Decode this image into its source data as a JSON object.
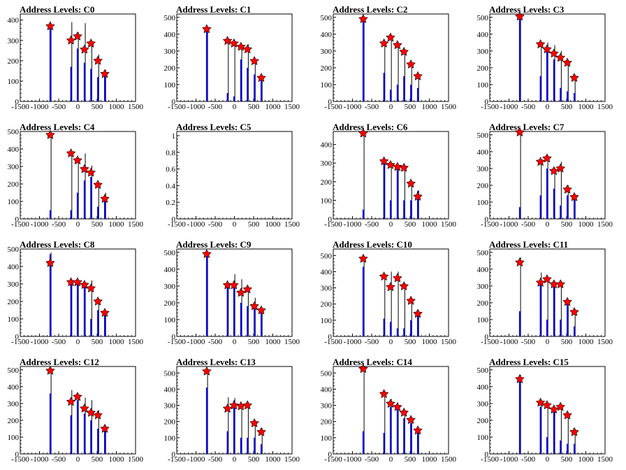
{
  "chart_data": [
    {
      "type": "bar",
      "title": "Address Levels: C0",
      "xlim": [
        -1500,
        1500
      ],
      "ylim": [
        0,
        430
      ],
      "yticks": [
        0,
        100,
        200,
        300,
        400
      ],
      "xticks": [
        -1500,
        -1000,
        -500,
        0,
        500,
        1000,
        1500
      ],
      "levels": [
        {
          "x": -720,
          "blue": 370,
          "black": 380,
          "marker": 370
        },
        {
          "x": -180,
          "blue": 170,
          "black": 390,
          "marker": 300
        },
        {
          "x": -10,
          "blue": 260,
          "black": 340,
          "marker": 320
        },
        {
          "x": 170,
          "blue": 190,
          "black": 385,
          "marker": 255
        },
        {
          "x": 340,
          "blue": 160,
          "black": 300,
          "marker": 285
        },
        {
          "x": 520,
          "blue": 120,
          "black": 230,
          "marker": 200
        },
        {
          "x": 700,
          "blue": 140,
          "black": 155,
          "marker": 135
        }
      ]
    },
    {
      "type": "bar",
      "title": "Address Levels: C1",
      "xlim": [
        -1500,
        1500
      ],
      "ylim": [
        0,
        520
      ],
      "yticks": [
        0,
        100,
        200,
        300,
        400,
        500
      ],
      "xticks": [
        -1500,
        -1000,
        -500,
        0,
        500,
        1000,
        1500
      ],
      "levels": [
        {
          "x": -720,
          "blue": 440,
          "black": 445,
          "marker": 430
        },
        {
          "x": -180,
          "blue": 50,
          "black": 370,
          "marker": 360
        },
        {
          "x": -10,
          "blue": 30,
          "black": 360,
          "marker": 345
        },
        {
          "x": 170,
          "blue": 250,
          "black": 340,
          "marker": 325
        },
        {
          "x": 340,
          "blue": 200,
          "black": 340,
          "marker": 310
        },
        {
          "x": 520,
          "blue": 160,
          "black": 255,
          "marker": 240
        },
        {
          "x": 700,
          "blue": 130,
          "black": 150,
          "marker": 140
        }
      ]
    },
    {
      "type": "bar",
      "title": "Address Levels: C2",
      "xlim": [
        -1500,
        1500
      ],
      "ylim": [
        0,
        520
      ],
      "yticks": [
        0,
        100,
        200,
        300,
        400,
        500
      ],
      "xticks": [
        -1500,
        -1000,
        -500,
        0,
        500,
        1000,
        1500
      ],
      "levels": [
        {
          "x": -720,
          "blue": 500,
          "black": 505,
          "marker": 490
        },
        {
          "x": -180,
          "blue": 170,
          "black": 355,
          "marker": 345
        },
        {
          "x": -10,
          "blue": 70,
          "black": 390,
          "marker": 380
        },
        {
          "x": 170,
          "blue": 100,
          "black": 350,
          "marker": 335
        },
        {
          "x": 340,
          "blue": 150,
          "black": 310,
          "marker": 295
        },
        {
          "x": 520,
          "blue": 100,
          "black": 235,
          "marker": 220
        },
        {
          "x": 700,
          "blue": 80,
          "black": 165,
          "marker": 150
        }
      ]
    },
    {
      "type": "bar",
      "title": "Address Levels: C3",
      "xlim": [
        -1500,
        1500
      ],
      "ylim": [
        0,
        520
      ],
      "yticks": [
        0,
        100,
        200,
        300,
        400,
        500
      ],
      "xticks": [
        -1500,
        -1000,
        -500,
        0,
        500,
        1000,
        1500
      ],
      "levels": [
        {
          "x": -720,
          "blue": 505,
          "black": 510,
          "marker": 505
        },
        {
          "x": -180,
          "blue": 150,
          "black": 350,
          "marker": 340
        },
        {
          "x": -10,
          "blue": 300,
          "black": 350,
          "marker": 310
        },
        {
          "x": 170,
          "blue": 250,
          "black": 335,
          "marker": 285
        },
        {
          "x": 340,
          "blue": 80,
          "black": 300,
          "marker": 260
        },
        {
          "x": 520,
          "blue": 60,
          "black": 240,
          "marker": 230
        },
        {
          "x": 700,
          "blue": 50,
          "black": 155,
          "marker": 140
        }
      ]
    },
    {
      "type": "bar",
      "title": "Address Levels: C4",
      "xlim": [
        -1500,
        1500
      ],
      "ylim": [
        0,
        500
      ],
      "yticks": [
        0,
        100,
        200,
        300,
        400,
        500
      ],
      "xticks": [
        -1500,
        -1000,
        -500,
        0,
        500,
        1000,
        1500
      ],
      "levels": [
        {
          "x": -720,
          "blue": 50,
          "black": 485,
          "marker": 480
        },
        {
          "x": -180,
          "blue": 50,
          "black": 385,
          "marker": 375
        },
        {
          "x": -10,
          "blue": 150,
          "black": 340,
          "marker": 335
        },
        {
          "x": 170,
          "blue": 220,
          "black": 375,
          "marker": 285
        },
        {
          "x": 340,
          "blue": 240,
          "black": 305,
          "marker": 265
        },
        {
          "x": 520,
          "blue": 70,
          "black": 210,
          "marker": 195
        },
        {
          "x": 700,
          "blue": 100,
          "black": 150,
          "marker": 115
        }
      ]
    },
    {
      "type": "bar",
      "title": "Address Levels: C5",
      "xlim": [
        -1500,
        1500
      ],
      "ylim": [
        0,
        1.05
      ],
      "yticks": [
        0,
        0.2,
        0.4,
        0.6,
        0.8,
        1
      ],
      "xticks": [
        -1500,
        -1000,
        -500,
        0,
        500,
        1000,
        1500
      ],
      "levels": []
    },
    {
      "type": "bar",
      "title": "Address Levels: C6",
      "xlim": [
        -1500,
        1500
      ],
      "ylim": [
        0,
        470
      ],
      "yticks": [
        0,
        100,
        200,
        300,
        400
      ],
      "xticks": [
        -1500,
        -1000,
        -500,
        0,
        500,
        1000,
        1500
      ],
      "levels": [
        {
          "x": -720,
          "blue": 50,
          "black": 470,
          "marker": 460
        },
        {
          "x": -180,
          "blue": 310,
          "black": 320,
          "marker": 310
        },
        {
          "x": -10,
          "blue": 100,
          "black": 300,
          "marker": 290
        },
        {
          "x": 170,
          "blue": 270,
          "black": 290,
          "marker": 280
        },
        {
          "x": 340,
          "blue": 100,
          "black": 280,
          "marker": 275
        },
        {
          "x": 520,
          "blue": 100,
          "black": 200,
          "marker": 190
        },
        {
          "x": 700,
          "blue": 150,
          "black": 155,
          "marker": 120
        }
      ]
    },
    {
      "type": "bar",
      "title": "Address Levels: C7",
      "xlim": [
        -1500,
        1500
      ],
      "ylim": [
        0,
        520
      ],
      "yticks": [
        0,
        100,
        200,
        300,
        400,
        500
      ],
      "xticks": [
        -1500,
        -1000,
        -500,
        0,
        500,
        1000,
        1500
      ],
      "levels": [
        {
          "x": -720,
          "blue": 70,
          "black": 520,
          "marker": 515
        },
        {
          "x": -180,
          "blue": 140,
          "black": 350,
          "marker": 340
        },
        {
          "x": -10,
          "blue": 300,
          "black": 360,
          "marker": 360
        },
        {
          "x": 170,
          "blue": 180,
          "black": 300,
          "marker": 285
        },
        {
          "x": 340,
          "blue": 80,
          "black": 340,
          "marker": 300
        },
        {
          "x": 520,
          "blue": 140,
          "black": 200,
          "marker": 175
        },
        {
          "x": 700,
          "blue": 120,
          "black": 145,
          "marker": 130
        }
      ]
    },
    {
      "type": "bar",
      "title": "Address Levels: C8",
      "xlim": [
        -1500,
        1500
      ],
      "ylim": [
        0,
        500
      ],
      "yticks": [
        0,
        100,
        200,
        300,
        400,
        500
      ],
      "xticks": [
        -1500,
        -1000,
        -500,
        0,
        500,
        1000,
        1500
      ],
      "levels": [
        {
          "x": -720,
          "blue": 470,
          "black": 480,
          "marker": 420
        },
        {
          "x": -180,
          "blue": 300,
          "black": 320,
          "marker": 310
        },
        {
          "x": -10,
          "blue": 300,
          "black": 320,
          "marker": 310
        },
        {
          "x": 170,
          "blue": 290,
          "black": 310,
          "marker": 295
        },
        {
          "x": 340,
          "blue": 100,
          "black": 320,
          "marker": 275
        },
        {
          "x": 520,
          "blue": 150,
          "black": 215,
          "marker": 200
        },
        {
          "x": 700,
          "blue": 130,
          "black": 140,
          "marker": 135
        }
      ]
    },
    {
      "type": "bar",
      "title": "Address Levels: C9",
      "xlim": [
        -1500,
        1500
      ],
      "ylim": [
        0,
        520
      ],
      "yticks": [
        0,
        100,
        200,
        300,
        400,
        500
      ],
      "xticks": [
        -1500,
        -1000,
        -500,
        0,
        500,
        1000,
        1500
      ],
      "levels": [
        {
          "x": -720,
          "blue": 500,
          "black": 505,
          "marker": 490
        },
        {
          "x": -180,
          "blue": 310,
          "black": 320,
          "marker": 305
        },
        {
          "x": -10,
          "blue": 320,
          "black": 370,
          "marker": 305
        },
        {
          "x": 170,
          "blue": 200,
          "black": 340,
          "marker": 260
        },
        {
          "x": 340,
          "blue": 180,
          "black": 300,
          "marker": 280
        },
        {
          "x": 520,
          "blue": 170,
          "black": 230,
          "marker": 180
        },
        {
          "x": 700,
          "blue": 150,
          "black": 170,
          "marker": 155
        }
      ]
    },
    {
      "type": "bar",
      "title": "Address Levels: C10",
      "xlim": [
        -1500,
        1500
      ],
      "ylim": [
        0,
        540
      ],
      "yticks": [
        0,
        100,
        200,
        300,
        400,
        500
      ],
      "xticks": [
        -1500,
        -1000,
        -500,
        0,
        500,
        1000,
        1500
      ],
      "levels": [
        {
          "x": -720,
          "blue": 430,
          "black": 500,
          "marker": 480
        },
        {
          "x": -180,
          "blue": 110,
          "black": 380,
          "marker": 370
        },
        {
          "x": -10,
          "blue": 90,
          "black": 400,
          "marker": 305
        },
        {
          "x": 170,
          "blue": 50,
          "black": 400,
          "marker": 360
        },
        {
          "x": 340,
          "blue": 50,
          "black": 330,
          "marker": 310
        },
        {
          "x": 520,
          "blue": 100,
          "black": 240,
          "marker": 220
        },
        {
          "x": 700,
          "blue": 150,
          "black": 160,
          "marker": 140
        }
      ]
    },
    {
      "type": "bar",
      "title": "Address Levels: C11",
      "xlim": [
        -1500,
        1500
      ],
      "ylim": [
        0,
        520
      ],
      "yticks": [
        0,
        100,
        200,
        300,
        400,
        500
      ],
      "xticks": [
        -1500,
        -1000,
        -500,
        0,
        500,
        1000,
        1500
      ],
      "levels": [
        {
          "x": -720,
          "blue": 150,
          "black": 470,
          "marker": 440
        },
        {
          "x": -180,
          "blue": 320,
          "black": 380,
          "marker": 320
        },
        {
          "x": -10,
          "blue": 100,
          "black": 350,
          "marker": 340
        },
        {
          "x": 170,
          "blue": 300,
          "black": 330,
          "marker": 310
        },
        {
          "x": 340,
          "blue": 100,
          "black": 330,
          "marker": 310
        },
        {
          "x": 520,
          "blue": 200,
          "black": 220,
          "marker": 205
        },
        {
          "x": 700,
          "blue": 60,
          "black": 155,
          "marker": 145
        }
      ]
    },
    {
      "type": "bar",
      "title": "Address Levels: C12",
      "xlim": [
        -1500,
        1500
      ],
      "ylim": [
        0,
        520
      ],
      "yticks": [
        0,
        100,
        200,
        300,
        400,
        500
      ],
      "xticks": [
        -1500,
        -1000,
        -500,
        0,
        500,
        1000,
        1500
      ],
      "levels": [
        {
          "x": -720,
          "blue": 360,
          "black": 510,
          "marker": 495
        },
        {
          "x": -180,
          "blue": 230,
          "black": 380,
          "marker": 310
        },
        {
          "x": -10,
          "blue": 320,
          "black": 350,
          "marker": 340
        },
        {
          "x": 170,
          "blue": 240,
          "black": 335,
          "marker": 270
        },
        {
          "x": 340,
          "blue": 200,
          "black": 320,
          "marker": 245
        },
        {
          "x": 520,
          "blue": 150,
          "black": 260,
          "marker": 230
        },
        {
          "x": 700,
          "blue": 150,
          "black": 170,
          "marker": 150
        }
      ]
    },
    {
      "type": "bar",
      "title": "Address Levels: C13",
      "xlim": [
        -1500,
        1500
      ],
      "ylim": [
        0,
        540
      ],
      "yticks": [
        0,
        100,
        200,
        300,
        400,
        500
      ],
      "xticks": [
        -1500,
        -1000,
        -500,
        0,
        500,
        1000,
        1500
      ],
      "levels": [
        {
          "x": -720,
          "blue": 410,
          "black": 510,
          "marker": 510
        },
        {
          "x": -180,
          "blue": 140,
          "black": 350,
          "marker": 280
        },
        {
          "x": -10,
          "blue": 330,
          "black": 345,
          "marker": 300
        },
        {
          "x": 170,
          "blue": 100,
          "black": 310,
          "marker": 295
        },
        {
          "x": 340,
          "blue": 100,
          "black": 320,
          "marker": 300
        },
        {
          "x": 520,
          "blue": 100,
          "black": 200,
          "marker": 190
        },
        {
          "x": 700,
          "blue": 60,
          "black": 160,
          "marker": 135
        }
      ]
    },
    {
      "type": "bar",
      "title": "Address Levels: C14",
      "xlim": [
        -1500,
        1500
      ],
      "ylim": [
        0,
        540
      ],
      "yticks": [
        0,
        100,
        200,
        300,
        400,
        500
      ],
      "xticks": [
        -1500,
        -1000,
        -500,
        0,
        500,
        1000,
        1500
      ],
      "levels": [
        {
          "x": -720,
          "blue": 140,
          "black": 540,
          "marker": 525
        },
        {
          "x": -180,
          "blue": 130,
          "black": 385,
          "marker": 370
        },
        {
          "x": -10,
          "blue": 290,
          "black": 340,
          "marker": 310
        },
        {
          "x": 170,
          "blue": 280,
          "black": 300,
          "marker": 290
        },
        {
          "x": 340,
          "blue": 220,
          "black": 270,
          "marker": 255
        },
        {
          "x": 520,
          "blue": 190,
          "black": 220,
          "marker": 210
        },
        {
          "x": 700,
          "blue": 130,
          "black": 150,
          "marker": 145
        }
      ]
    },
    {
      "type": "bar",
      "title": "Address Levels: C15",
      "xlim": [
        -1500,
        1500
      ],
      "ylim": [
        0,
        520
      ],
      "yticks": [
        0,
        100,
        200,
        300,
        400,
        500
      ],
      "xticks": [
        -1500,
        -1000,
        -500,
        0,
        500,
        1000,
        1500
      ],
      "levels": [
        {
          "x": -720,
          "blue": 460,
          "black": 470,
          "marker": 445
        },
        {
          "x": -180,
          "blue": 280,
          "black": 320,
          "marker": 305
        },
        {
          "x": -10,
          "blue": 100,
          "black": 310,
          "marker": 290
        },
        {
          "x": 170,
          "blue": 260,
          "black": 285,
          "marker": 265
        },
        {
          "x": 340,
          "blue": 80,
          "black": 300,
          "marker": 280
        },
        {
          "x": 520,
          "blue": 60,
          "black": 240,
          "marker": 230
        },
        {
          "x": 700,
          "blue": 60,
          "black": 150,
          "marker": 130
        }
      ]
    }
  ],
  "colors": {
    "blue_bar": "#0000ff",
    "black_bar": "#000000",
    "marker_fill": "#ff0000",
    "marker_stroke": "#000000",
    "axis": "#000000"
  }
}
